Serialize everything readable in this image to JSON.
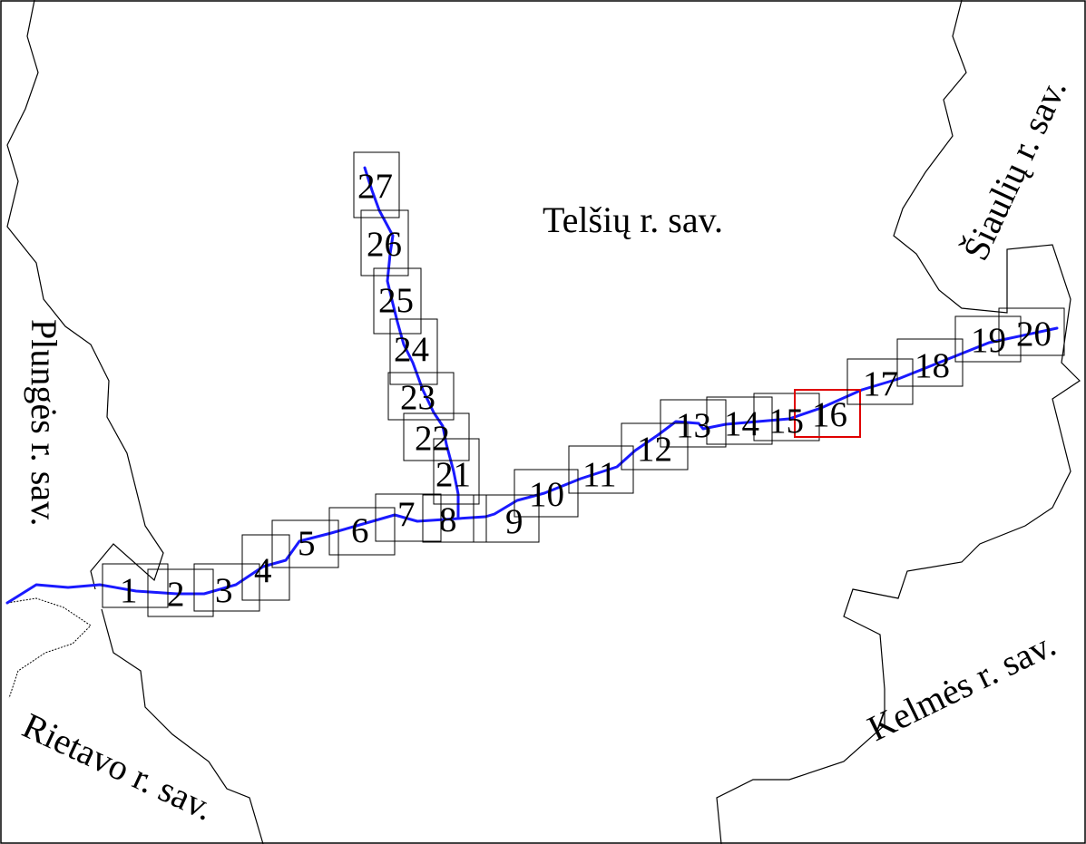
{
  "colors": {
    "river": "#1a1aff",
    "sheet_border": "#000000",
    "selected_sheet_border": "#e00000",
    "background": "#ffffff"
  },
  "regions": {
    "telsiai": "Telšių r. sav.",
    "plunge": "Plungės r. sav.",
    "rietavas": "Rietavo r. sav.",
    "kelme": "Kelmės r. sav.",
    "siauliai": "Šiaulių r. sav."
  },
  "sheets": {
    "s1": "1",
    "s2": "2",
    "s3": "3",
    "s4": "4",
    "s5": "5",
    "s6": "6",
    "s7": "7",
    "s8": "8",
    "s9": "9",
    "s10": "10",
    "s11": "11",
    "s12": "12",
    "s13": "13",
    "s14": "14",
    "s15": "15",
    "s16": "16",
    "s17": "17",
    "s18": "18",
    "s19": "19",
    "s20": "20",
    "s21": "21",
    "s22": "22",
    "s23": "23",
    "s24": "24",
    "s25": "25",
    "s26": "26",
    "s27": "27"
  },
  "selected_sheet": "16"
}
